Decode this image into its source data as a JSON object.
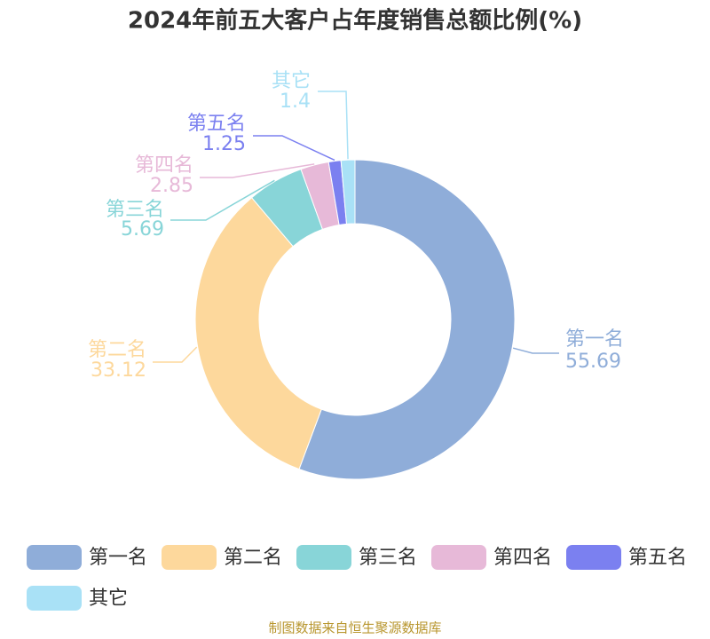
{
  "chart_data": {
    "type": "donut",
    "title": "2024年前五大客户占年度销售总额比例(%)",
    "categories": [
      "第一名",
      "第二名",
      "第三名",
      "第四名",
      "第五名",
      "其它"
    ],
    "values": [
      55.69,
      33.12,
      5.69,
      2.85,
      1.25,
      1.4
    ],
    "colors": [
      "#8fadd9",
      "#fdd89c",
      "#88d5d8",
      "#e7b9d8",
      "#7b80f0",
      "#a9e1f6"
    ],
    "source": "制图数据来自恒生聚源数据库"
  }
}
